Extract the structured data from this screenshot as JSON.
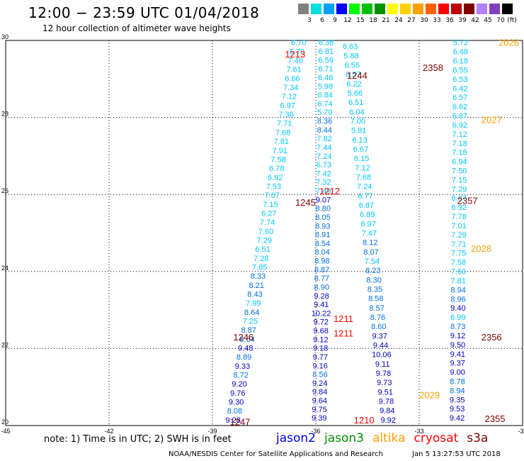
{
  "header": {
    "title": "12:00 − 23:59 UTC 01/04/2018",
    "subtitle": "12 hour collection of altimeter wave heights"
  },
  "color_scale": {
    "unit": "(ft)",
    "colors": [
      "#808080",
      "#00e0e0",
      "#00a0ff",
      "#0000ff",
      "#00ff00",
      "#00c000",
      "#009000",
      "#ffff00",
      "#ffd000",
      "#ffa000",
      "#ff6000",
      "#ff0000",
      "#c00000",
      "#800000",
      "#b080ff",
      "#8040c0",
      "#000000"
    ],
    "labels": [
      "3",
      "6",
      "9",
      "12",
      "15",
      "18",
      "21",
      "24",
      "27",
      "30",
      "33",
      "36",
      "39",
      "42",
      "45",
      "70"
    ]
  },
  "map": {
    "lon_ticks": [
      "-45",
      "-42",
      "-39",
      "-36",
      "-33",
      "-30"
    ],
    "lat_ticks": [
      "20",
      "22",
      "24",
      "26",
      "28",
      "30"
    ],
    "lon_range": [
      -45,
      -30
    ],
    "lat_range": [
      20,
      30
    ]
  },
  "satellite_colors": {
    "jason2": "#0000ff",
    "jason3": "#009000",
    "altika": "#ffa000",
    "cryosat": "#ff0000",
    "s3a": "#800000",
    "light": "#00c8ff",
    "mid": "#0070e0",
    "dark": "#0000c8"
  },
  "tracks": [
    {
      "name": "track-a",
      "label": "1247",
      "label_lat": 20.1,
      "label_lon": -38.2,
      "label_color": "s3a",
      "lon_start": -38.4,
      "lon_end": -36.5,
      "lat_start": 20.15,
      "lat_end": 29.95,
      "values": [
        "9.28",
        "8.08",
        "9.30",
        "9.76",
        "9.20",
        "8.72",
        "9.33",
        "8.89",
        "9.48",
        "8.64",
        "8.87",
        "7.25",
        "8.64",
        "7.99",
        "8.43",
        "8.21",
        "8.33",
        "7.85",
        "7.28",
        "6.51",
        "7.29",
        "7.60",
        "7.74",
        "6.27",
        "7.15",
        "7.07",
        "7.53",
        "6.92",
        "6.78",
        "7.58",
        "7.91",
        "7.81",
        "7.68",
        "7.71",
        "7.36",
        "6.97",
        "7.12",
        "7.34",
        "6.66",
        "7.61",
        "7.46",
        "6.70",
        "6.70"
      ]
    },
    {
      "name": "track-b",
      "label": "1210",
      "label_lat": 20.15,
      "label_lon": -34.6,
      "label_color": "cryosat",
      "lon_start": -35.9,
      "lon_end": -35.7,
      "lat_start": 20.2,
      "lat_end": 29.95,
      "values": [
        "9.39",
        "9.75",
        "9.64",
        "9.84",
        "9.24",
        "8.56",
        "9.16",
        "9.77",
        "9.18",
        "9.12",
        "9.68",
        "9.72",
        "10.22",
        "9.41",
        "9.28",
        "8.90",
        "8.77",
        "8.87",
        "8.98",
        "8.04",
        "8.54",
        "8.91",
        "8.93",
        "8.05",
        "8.80",
        "9.07",
        "7.49",
        "7.32",
        "7.42",
        "6.73",
        "7.24",
        "7.44",
        "7.82",
        "8.44",
        "8.36",
        "5.70",
        "6.74",
        "6.84",
        "5.98",
        "6.46",
        "6.71",
        "6.59",
        "6.81",
        "6.38"
      ]
    },
    {
      "name": "track-c",
      "label": "2358",
      "label_lat": 29.3,
      "label_lon": -32.6,
      "label_color": "s3a",
      "lon_start": -33.9,
      "lon_end": -35.0,
      "lat_start": 20.15,
      "lat_end": 29.85,
      "values": [
        "9.92",
        "9.84",
        "9.78",
        "9.51",
        "9.73",
        "9.78",
        "9.11",
        "10.06",
        "9.44",
        "9.37",
        "8.60",
        "8.76",
        "8.57",
        "8.58",
        "8.35",
        "8.30",
        "8.23",
        "7.54",
        "8.07",
        "8.12",
        "7.47",
        "6.97",
        "6.89",
        "6.87",
        "6.77",
        "7.24",
        "7.68",
        "7.12",
        "6.15",
        "6.67",
        "6.13",
        "5.81",
        "7.00",
        "6.04",
        "6.51",
        "5.66",
        "6.22",
        "6.37",
        "6.55",
        "5.88",
        "6.63"
      ]
    },
    {
      "name": "track-d",
      "label": "2355",
      "label_lat": 20.18,
      "label_lon": -30.8,
      "label_color": "s3a",
      "lon_start": -31.9,
      "lon_end": -31.8,
      "lat_start": 20.2,
      "lat_end": 29.95,
      "values": [
        "9.42",
        "9.53",
        "9.35",
        "8.94",
        "8.78",
        "9.00",
        "9.37",
        "9.41",
        "9.50",
        "9.12",
        "8.73",
        "6.99",
        "9.40",
        "8.96",
        "8.94",
        "7.81",
        "7.60",
        "7.58",
        "7.75",
        "7.71",
        "7.29",
        "7.01",
        "7.78",
        "6.92",
        "6.87",
        "7.29",
        "7.15",
        "7.50",
        "6.94",
        "7.18",
        "7.18",
        "7.12",
        "6.92",
        "6.87",
        "6.62",
        "6.57",
        "6.42",
        "6.53",
        "6.55",
        "6.18",
        "6.48",
        "5.72"
      ]
    }
  ],
  "labels": [
    {
      "text": "1213",
      "lat": 29.65,
      "lon": -36.6,
      "color": "cryosat"
    },
    {
      "text": "1244",
      "lat": 29.1,
      "lon": -34.8,
      "color": "s3a"
    },
    {
      "text": "2026",
      "lat": 29.95,
      "lon": -30.4,
      "color": "altika"
    },
    {
      "text": "2027",
      "lat": 27.95,
      "lon": -30.9,
      "color": "altika"
    },
    {
      "text": "1212",
      "lat": 26.1,
      "lon": -35.6,
      "color": "cryosat"
    },
    {
      "text": "1245",
      "lat": 25.8,
      "lon": -36.3,
      "color": "s3a"
    },
    {
      "text": "2357",
      "lat": 25.85,
      "lon": -31.6,
      "color": "s3a"
    },
    {
      "text": "2028",
      "lat": 24.6,
      "lon": -31.2,
      "color": "altika"
    },
    {
      "text": "1211",
      "lat": 22.78,
      "lon": -35.2,
      "color": "cryosat"
    },
    {
      "text": "1211",
      "lat": 22.4,
      "lon": -35.2,
      "color": "cryosat"
    },
    {
      "text": "1246",
      "lat": 22.3,
      "lon": -38.1,
      "color": "s3a"
    },
    {
      "text": "2356",
      "lat": 22.3,
      "lon": -30.9,
      "color": "s3a"
    },
    {
      "text": "2029",
      "lat": 20.8,
      "lon": -32.7,
      "color": "altika"
    }
  ],
  "note": "note: 1) Time is in UTC; 2) SWH is in feet",
  "legend": [
    {
      "name": "jason2",
      "color": "jason2"
    },
    {
      "name": "jason3",
      "color": "jason3"
    },
    {
      "name": "altika",
      "color": "altika"
    },
    {
      "name": "cryosat",
      "color": "cryosat"
    },
    {
      "name": "s3a",
      "color": "s3a"
    }
  ],
  "footer": {
    "credit": "NOAA/NESDIS Center for Satellite Applications and Research",
    "timestamp": "Jan  5 13:27:53 UTC 2018"
  }
}
